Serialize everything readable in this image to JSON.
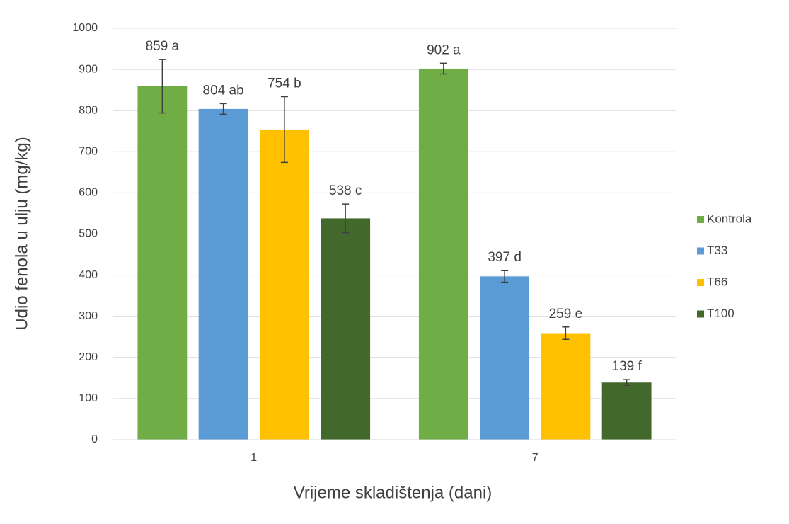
{
  "chart_data": {
    "type": "bar",
    "y_label": "Udio fenola u ulju (mg/kg)",
    "x_label": "Vrijeme skladištenja (dani)",
    "categories": [
      "1",
      "7"
    ],
    "ylim": [
      0,
      1000
    ],
    "yticks": [
      0,
      100,
      200,
      300,
      400,
      500,
      600,
      700,
      800,
      900,
      1000
    ],
    "grid": true,
    "legend": "right",
    "series": [
      {
        "name": "Kontrola",
        "color": "#70ad47",
        "values": [
          859,
          902
        ],
        "errors": [
          65,
          13
        ],
        "value_labels": [
          "859 a",
          "902 a"
        ]
      },
      {
        "name": "T33",
        "color": "#5b9bd5",
        "values": [
          804,
          397
        ],
        "errors": [
          13,
          14
        ],
        "value_labels": [
          "804 ab",
          "397 d"
        ]
      },
      {
        "name": "T66",
        "color": "#ffc000",
        "values": [
          754,
          259
        ],
        "errors": [
          80,
          15
        ],
        "value_labels": [
          "754 b",
          "259 e"
        ]
      },
      {
        "name": "T100",
        "color": "#43682b",
        "values": [
          538,
          139
        ],
        "errors": [
          35,
          7
        ],
        "value_labels": [
          "538 c",
          "139 f"
        ]
      }
    ]
  }
}
